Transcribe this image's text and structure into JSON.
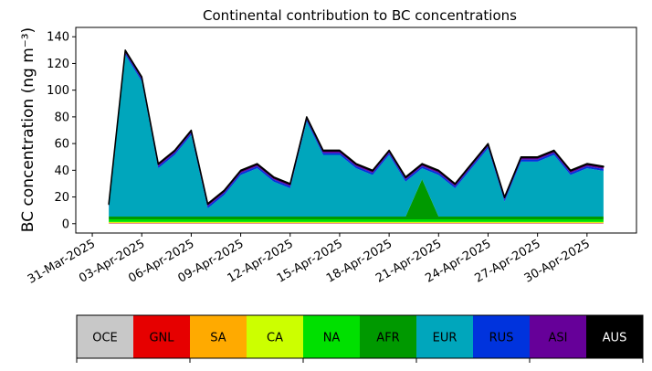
{
  "chart_data": {
    "type": "stacked-area",
    "title": "Continental contribution to BC concentrations",
    "y_label": "BC concentration (ng m⁻³)",
    "x": [
      "2025-04-01",
      "2025-04-02",
      "2025-04-03",
      "2025-04-04",
      "2025-04-05",
      "2025-04-06",
      "2025-04-07",
      "2025-04-08",
      "2025-04-09",
      "2025-04-10",
      "2025-04-11",
      "2025-04-12",
      "2025-04-13",
      "2025-04-14",
      "2025-04-15",
      "2025-04-16",
      "2025-04-17",
      "2025-04-18",
      "2025-04-19",
      "2025-04-20",
      "2025-04-21",
      "2025-04-22",
      "2025-04-23",
      "2025-04-24",
      "2025-04-25",
      "2025-04-26",
      "2025-04-27",
      "2025-04-28",
      "2025-04-29",
      "2025-04-30",
      "2025-05-01"
    ],
    "xlim": [
      "2025-03-30",
      "2025-05-03"
    ],
    "xticks": [
      {
        "value": "2025-03-31",
        "label": "31-Mar-2025"
      },
      {
        "value": "2025-04-03",
        "label": "03-Apr-2025"
      },
      {
        "value": "2025-04-06",
        "label": "06-Apr-2025"
      },
      {
        "value": "2025-04-09",
        "label": "09-Apr-2025"
      },
      {
        "value": "2025-04-12",
        "label": "12-Apr-2025"
      },
      {
        "value": "2025-04-15",
        "label": "15-Apr-2025"
      },
      {
        "value": "2025-04-18",
        "label": "18-Apr-2025"
      },
      {
        "value": "2025-04-21",
        "label": "21-Apr-2025"
      },
      {
        "value": "2025-04-24",
        "label": "24-Apr-2025"
      },
      {
        "value": "2025-04-27",
        "label": "27-Apr-2025"
      },
      {
        "value": "2025-04-30",
        "label": "30-Apr-2025"
      }
    ],
    "ylim": [
      -7,
      147
    ],
    "yticks": [
      0,
      20,
      40,
      60,
      80,
      100,
      120,
      140
    ],
    "series": [
      {
        "name": "OCE",
        "color": "#c8c8c8",
        "values": [
          0.3,
          0.3,
          0.3,
          0.3,
          0.3,
          0.3,
          0.3,
          0.3,
          0.3,
          0.3,
          0.3,
          0.3,
          0.3,
          0.3,
          0.3,
          0.3,
          0.3,
          0.3,
          0.3,
          0.3,
          0.3,
          0.3,
          0.3,
          0.3,
          0.3,
          0.3,
          0.3,
          0.3,
          0.3,
          0.3,
          0.3
        ]
      },
      {
        "name": "GNL",
        "color": "#e60000",
        "values": [
          0.2,
          0.2,
          0.2,
          0.2,
          0.2,
          0.2,
          0.2,
          0.2,
          0.2,
          0.2,
          0.2,
          0.2,
          0.2,
          0.2,
          0.2,
          0.2,
          0.2,
          0.2,
          0.2,
          0.2,
          0.2,
          0.2,
          0.2,
          0.2,
          0.2,
          0.2,
          0.2,
          0.2,
          0.2,
          0.2,
          0.2
        ]
      },
      {
        "name": "SA",
        "color": "#ffaa00",
        "values": [
          0.3,
          0.3,
          0.3,
          0.3,
          0.3,
          0.3,
          0.3,
          0.3,
          0.3,
          0.3,
          0.3,
          0.3,
          0.3,
          0.3,
          0.3,
          0.3,
          0.3,
          0.3,
          0.3,
          0.3,
          0.3,
          0.3,
          0.3,
          0.3,
          0.3,
          0.3,
          0.3,
          0.3,
          0.3,
          0.3,
          0.3
        ]
      },
      {
        "name": "CA",
        "color": "#ccff00",
        "values": [
          0.5,
          0.5,
          0.5,
          0.5,
          0.5,
          0.5,
          0.5,
          0.5,
          0.5,
          0.5,
          0.5,
          0.5,
          0.5,
          0.5,
          0.5,
          0.5,
          0.5,
          0.5,
          0.5,
          0.5,
          0.5,
          0.5,
          0.5,
          0.5,
          0.5,
          0.5,
          0.5,
          0.5,
          0.5,
          0.5,
          0.5
        ]
      },
      {
        "name": "NA",
        "color": "#00e000",
        "values": [
          2,
          2,
          2,
          2,
          2,
          2,
          2,
          2,
          2,
          2,
          2,
          2,
          2,
          2,
          2,
          2,
          2,
          2,
          2,
          2,
          2,
          2,
          2,
          2,
          2,
          2,
          2,
          2,
          2,
          2,
          2
        ]
      },
      {
        "name": "AFR",
        "color": "#009900",
        "values": [
          2,
          2,
          2,
          2,
          2,
          2,
          2,
          2,
          2,
          2,
          2,
          2,
          2,
          2,
          2,
          2,
          2,
          2,
          2,
          30,
          2,
          2,
          2,
          2,
          2,
          2,
          2,
          2,
          2,
          2,
          2
        ]
      },
      {
        "name": "EUR",
        "color": "#00a6bc",
        "values": [
          6.2,
          121.2,
          101.2,
          36.2,
          46.2,
          61.2,
          6.2,
          16.2,
          31.2,
          36.2,
          26.2,
          21.2,
          71.2,
          46.2,
          46.2,
          36.2,
          31.2,
          46.2,
          26.2,
          8.2,
          31.2,
          21.2,
          36.2,
          51.2,
          11.2,
          41.2,
          41.2,
          46.2,
          31.2,
          36.2,
          34.2
        ]
      },
      {
        "name": "RUS",
        "color": "#0033dd",
        "values": [
          1.5,
          1.5,
          1.5,
          1.5,
          1.5,
          1.5,
          1.5,
          1.5,
          1.5,
          1.5,
          1.5,
          1.5,
          1.5,
          1.5,
          1.5,
          1.5,
          1.5,
          1.5,
          1.5,
          1.5,
          1.5,
          1.5,
          1.5,
          1.5,
          1.5,
          1.5,
          1.5,
          1.5,
          1.5,
          1.5,
          1.5
        ]
      },
      {
        "name": "ASI",
        "color": "#660099",
        "values": [
          1.5,
          1.5,
          1.5,
          1.5,
          1.5,
          1.5,
          1.5,
          1.5,
          1.5,
          1.5,
          1.5,
          1.5,
          1.5,
          1.5,
          1.5,
          1.5,
          1.5,
          1.5,
          1.5,
          1.5,
          1.5,
          1.5,
          1.5,
          1.5,
          1.5,
          1.5,
          1.5,
          1.5,
          1.5,
          1.5,
          1.5
        ]
      },
      {
        "name": "AUS",
        "color": "#000000",
        "values": [
          0.5,
          0.5,
          0.5,
          0.5,
          0.5,
          0.5,
          0.5,
          0.5,
          0.5,
          0.5,
          0.5,
          0.5,
          0.5,
          0.5,
          0.5,
          0.5,
          0.5,
          0.5,
          0.5,
          0.5,
          0.5,
          0.5,
          0.5,
          0.5,
          0.5,
          0.5,
          0.5,
          0.5,
          0.5,
          0.5,
          0.5
        ]
      }
    ]
  }
}
